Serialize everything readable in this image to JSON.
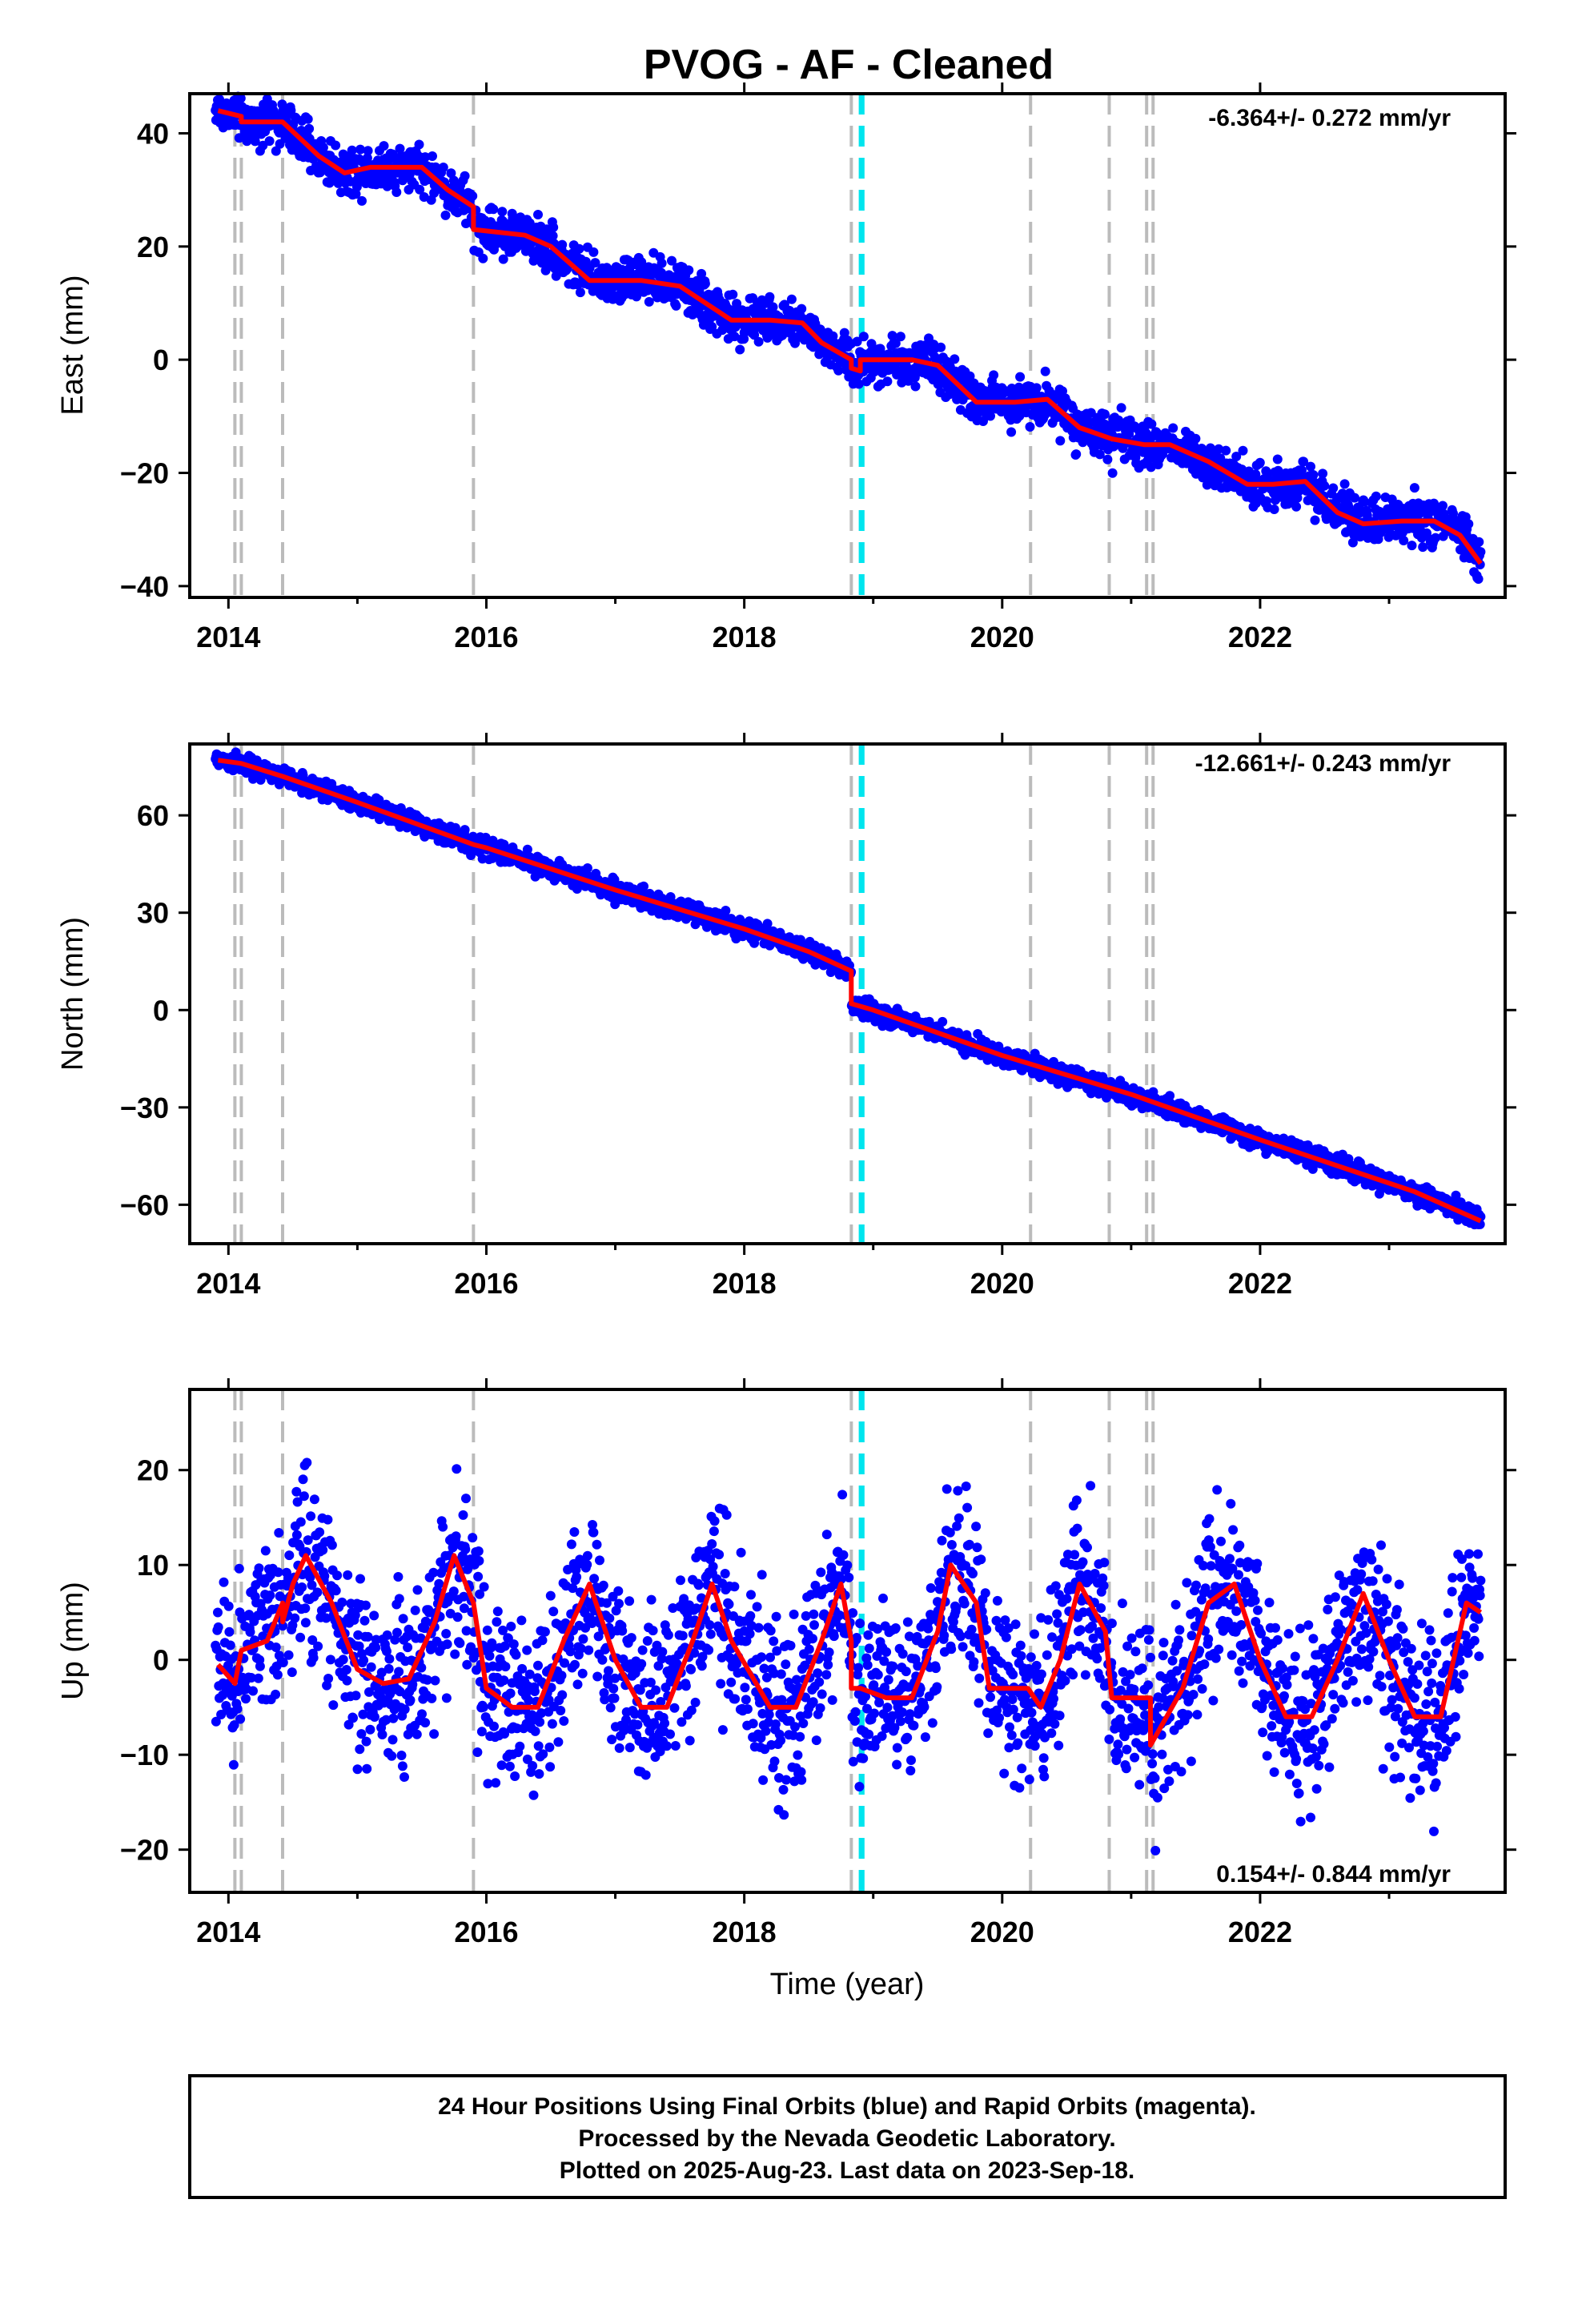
{
  "title": "PVOG  - AF - Cleaned",
  "colors": {
    "data_points": "#0000ff",
    "model_line": "#ff0000",
    "equipment_change": "#bbbbbb",
    "earthquake": "#00e5ee",
    "frame": "#000000"
  },
  "chart_data": [
    {
      "type": "scatter",
      "panel": "east",
      "ylabel": "East (mm)",
      "xlabel": "",
      "xlim": [
        2013.7,
        2023.9
      ],
      "ylim": [
        -42,
        47
      ],
      "xticks": [
        2014,
        2016,
        2018,
        2020,
        2022
      ],
      "xtick_labels": [
        "2014",
        "2016",
        "2018",
        "2020",
        "2022"
      ],
      "yticks": [
        40,
        20,
        0,
        -20,
        -40
      ],
      "ytick_labels": [
        "40",
        "20",
        "0",
        "−20",
        "−40"
      ],
      "rate_text": "-6.364+/- 0.272 mm/yr",
      "model_line": {
        "x": [
          2013.92,
          2014.1,
          2014.1,
          2014.42,
          2014.7,
          2014.9,
          2015.1,
          2015.3,
          2015.5,
          2015.7,
          2015.9,
          2015.9,
          2016.3,
          2016.5,
          2016.8,
          2017.2,
          2017.5,
          2017.7,
          2017.9,
          2018.2,
          2018.45,
          2018.6,
          2018.83,
          2018.83,
          2018.9,
          2018.9,
          2019.3,
          2019.5,
          2019.8,
          2020.1,
          2020.35,
          2020.6,
          2020.85,
          2021.1,
          2021.3,
          2021.6,
          2021.9,
          2022.1,
          2022.35,
          2022.6,
          2022.8,
          2023.1,
          2023.35,
          2023.55,
          2023.71
        ],
        "y": [
          44,
          43,
          42,
          42,
          36,
          33,
          34,
          34,
          34,
          30,
          27,
          23,
          22,
          20,
          14,
          14,
          13,
          10,
          7,
          7,
          6.5,
          3,
          0,
          -1.5,
          -2,
          0,
          0,
          -1,
          -7.5,
          -7.5,
          -7,
          -12,
          -14,
          -15,
          -15,
          -18,
          -22,
          -22,
          -21.5,
          -27,
          -29,
          -28.5,
          -28.5,
          -31,
          -36
        ]
      },
      "series": {
        "name": "24 Hour Positions Using Final Orbits (blue)",
        "trend_mm_per_yr": -6.364,
        "scatter_mm": 2.0,
        "x_range": [
          2013.9,
          2023.71
        ],
        "points_shown": 2300
      }
    },
    {
      "type": "scatter",
      "panel": "north",
      "ylabel": "North (mm)",
      "xlabel": "",
      "xlim": [
        2013.7,
        2023.9
      ],
      "ylim": [
        -72,
        82
      ],
      "xticks": [
        2014,
        2016,
        2018,
        2020,
        2022
      ],
      "xtick_labels": [
        "2014",
        "2016",
        "2018",
        "2020",
        "2022"
      ],
      "yticks": [
        60,
        30,
        0,
        -30,
        -60
      ],
      "ytick_labels": [
        "60",
        "30",
        "0",
        "−30",
        "−60"
      ],
      "rate_text": "-12.661+/- 0.243 mm/yr",
      "model_line": {
        "x": [
          2013.92,
          2014.1,
          2014.42,
          2015.0,
          2015.9,
          2016.0,
          2017.0,
          2018.0,
          2018.5,
          2018.83,
          2018.83,
          2019.0,
          2020.0,
          2021.0,
          2022.0,
          2022.9,
          2023.2,
          2023.71
        ],
        "y": [
          77,
          76,
          72,
          64,
          51,
          50,
          37,
          25,
          18,
          12,
          2,
          0,
          -14,
          -26,
          -40,
          -52,
          -56,
          -65
        ]
      },
      "series": {
        "name": "24 Hour Positions Using Final Orbits (blue)",
        "trend_mm_per_yr": -12.661,
        "scatter_mm": 1.5,
        "x_range": [
          2013.9,
          2023.71
        ],
        "points_shown": 2300
      }
    },
    {
      "type": "scatter",
      "panel": "up",
      "ylabel": "Up (mm)",
      "xlabel": "Time (year)",
      "xlim": [
        2013.7,
        2023.9
      ],
      "ylim": [
        -24.5,
        28.5
      ],
      "xticks": [
        2014,
        2016,
        2018,
        2020,
        2022
      ],
      "xtick_labels": [
        "2014",
        "2016",
        "2018",
        "2020",
        "2022"
      ],
      "yticks": [
        20,
        10,
        0,
        -10,
        -20
      ],
      "ytick_labels": [
        "20",
        "10",
        "0",
        "−10",
        "−20"
      ],
      "rate_text": "0.154+/- 0.844 mm/yr",
      "model_line": {
        "x": [
          2013.92,
          2014.05,
          2014.1,
          2014.3,
          2014.42,
          2014.42,
          2014.5,
          2014.6,
          2014.8,
          2015.0,
          2015.2,
          2015.4,
          2015.6,
          2015.75,
          2015.9,
          2016.0,
          2016.2,
          2016.4,
          2016.6,
          2016.8,
          2017.0,
          2017.2,
          2017.4,
          2017.6,
          2017.75,
          2017.9,
          2018.2,
          2018.4,
          2018.6,
          2018.75,
          2018.83,
          2018.83,
          2018.9,
          2018.9,
          2019.1,
          2019.3,
          2019.5,
          2019.6,
          2019.8,
          2019.9,
          2020.2,
          2020.3,
          2020.45,
          2020.6,
          2020.8,
          2020.85,
          2021.0,
          2021.15,
          2021.15,
          2021.4,
          2021.6,
          2021.8,
          2022.0,
          2022.2,
          2022.4,
          2022.6,
          2022.8,
          2023.0,
          2023.2,
          2023.4,
          2023.6,
          2023.71
        ],
        "y": [
          -0.5,
          -2.5,
          1,
          2,
          6,
          4,
          8,
          11,
          6,
          -1,
          -2.5,
          -2,
          4,
          11,
          6,
          -3,
          -5,
          -5,
          2,
          8,
          0,
          -5,
          -5,
          2,
          8,
          2,
          -5,
          -5,
          2,
          8,
          2,
          -3,
          -3,
          -3,
          -4,
          -4,
          3,
          10,
          6,
          -3,
          -3,
          -5,
          0,
          8,
          3,
          -4,
          -4,
          -4,
          -9,
          -3,
          6,
          8,
          0,
          -6,
          -6,
          0,
          7,
          0,
          -6,
          -6,
          6,
          5
        ]
      },
      "series": {
        "name": "24 Hour Positions Using Final Orbits (blue)",
        "trend_mm_per_yr": 0.154,
        "scatter_mm": 4.5,
        "x_range": [
          2013.9,
          2023.71
        ],
        "points_shown": 2300
      }
    }
  ],
  "vertical_lines": {
    "equipment_change_years": [
      2014.05,
      2014.1,
      2014.42,
      2015.9,
      2018.83,
      2020.22,
      2020.83,
      2021.12,
      2021.17
    ],
    "earthquake_years": [
      2018.9,
      2018.92
    ]
  },
  "footer": {
    "line1": "24 Hour Positions Using Final Orbits (blue) and Rapid Orbits (magenta).",
    "line2": "Processed by the Nevada Geodetic Laboratory.",
    "line3": "Plotted on 2025-Aug-23. Last data on 2023-Sep-18."
  }
}
